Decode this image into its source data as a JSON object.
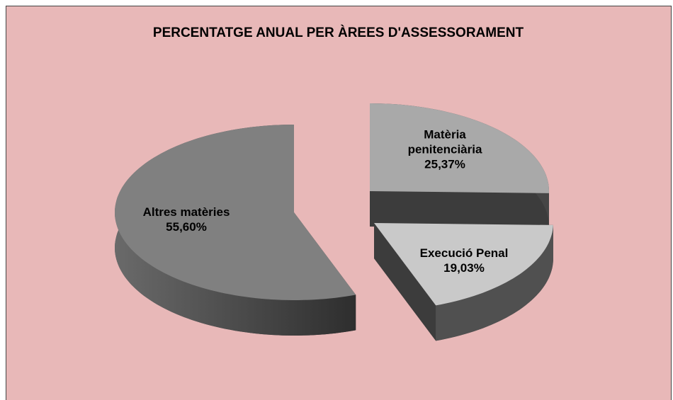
{
  "chart_data": {
    "type": "pie3d",
    "title": "PERCENTATGE ANUAL PER ÀREES D'ASSESSORAMENT",
    "categories": [
      "Matèria penitenciària",
      "Execució Penal",
      "Altres matèries"
    ],
    "values": [
      25.37,
      19.03,
      55.6
    ],
    "value_labels": [
      "25,37%",
      "19,03%",
      "55,60%"
    ],
    "colors": [
      "#a9a9a9",
      "#c9c9c9",
      "#808080"
    ]
  }
}
